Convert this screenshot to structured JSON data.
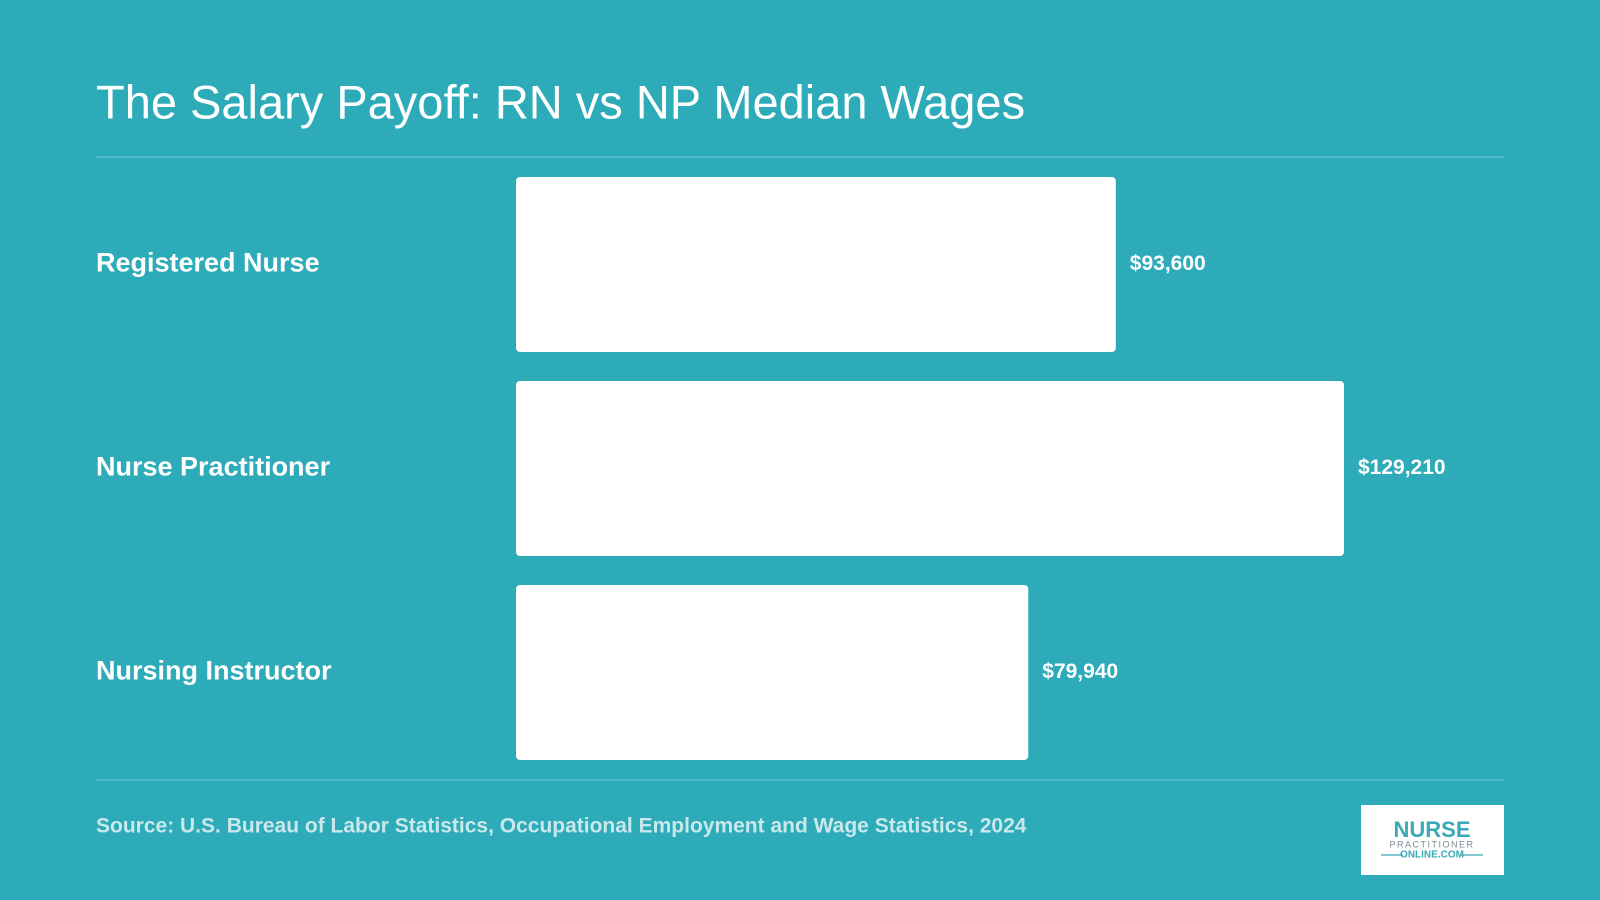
{
  "chart_data": {
    "type": "bar",
    "orientation": "horizontal",
    "title": "The Salary Payoff: RN vs NP Median Wages",
    "categories": [
      "Registered Nurse",
      "Nurse Practitioner",
      "Nursing Instructor"
    ],
    "values": [
      93600,
      129210,
      79940
    ],
    "value_labels": [
      "$93,600",
      "$129,210",
      "$79,940"
    ],
    "color": "#ffffff",
    "source": "Source: U.S. Bureau of Labor Statistics, Occupational Employment and Wage Statistics, 2024"
  },
  "logo": {
    "line1": "NURSE",
    "line2": "PRACTITIONER",
    "line3": "ONLINE.COM"
  }
}
